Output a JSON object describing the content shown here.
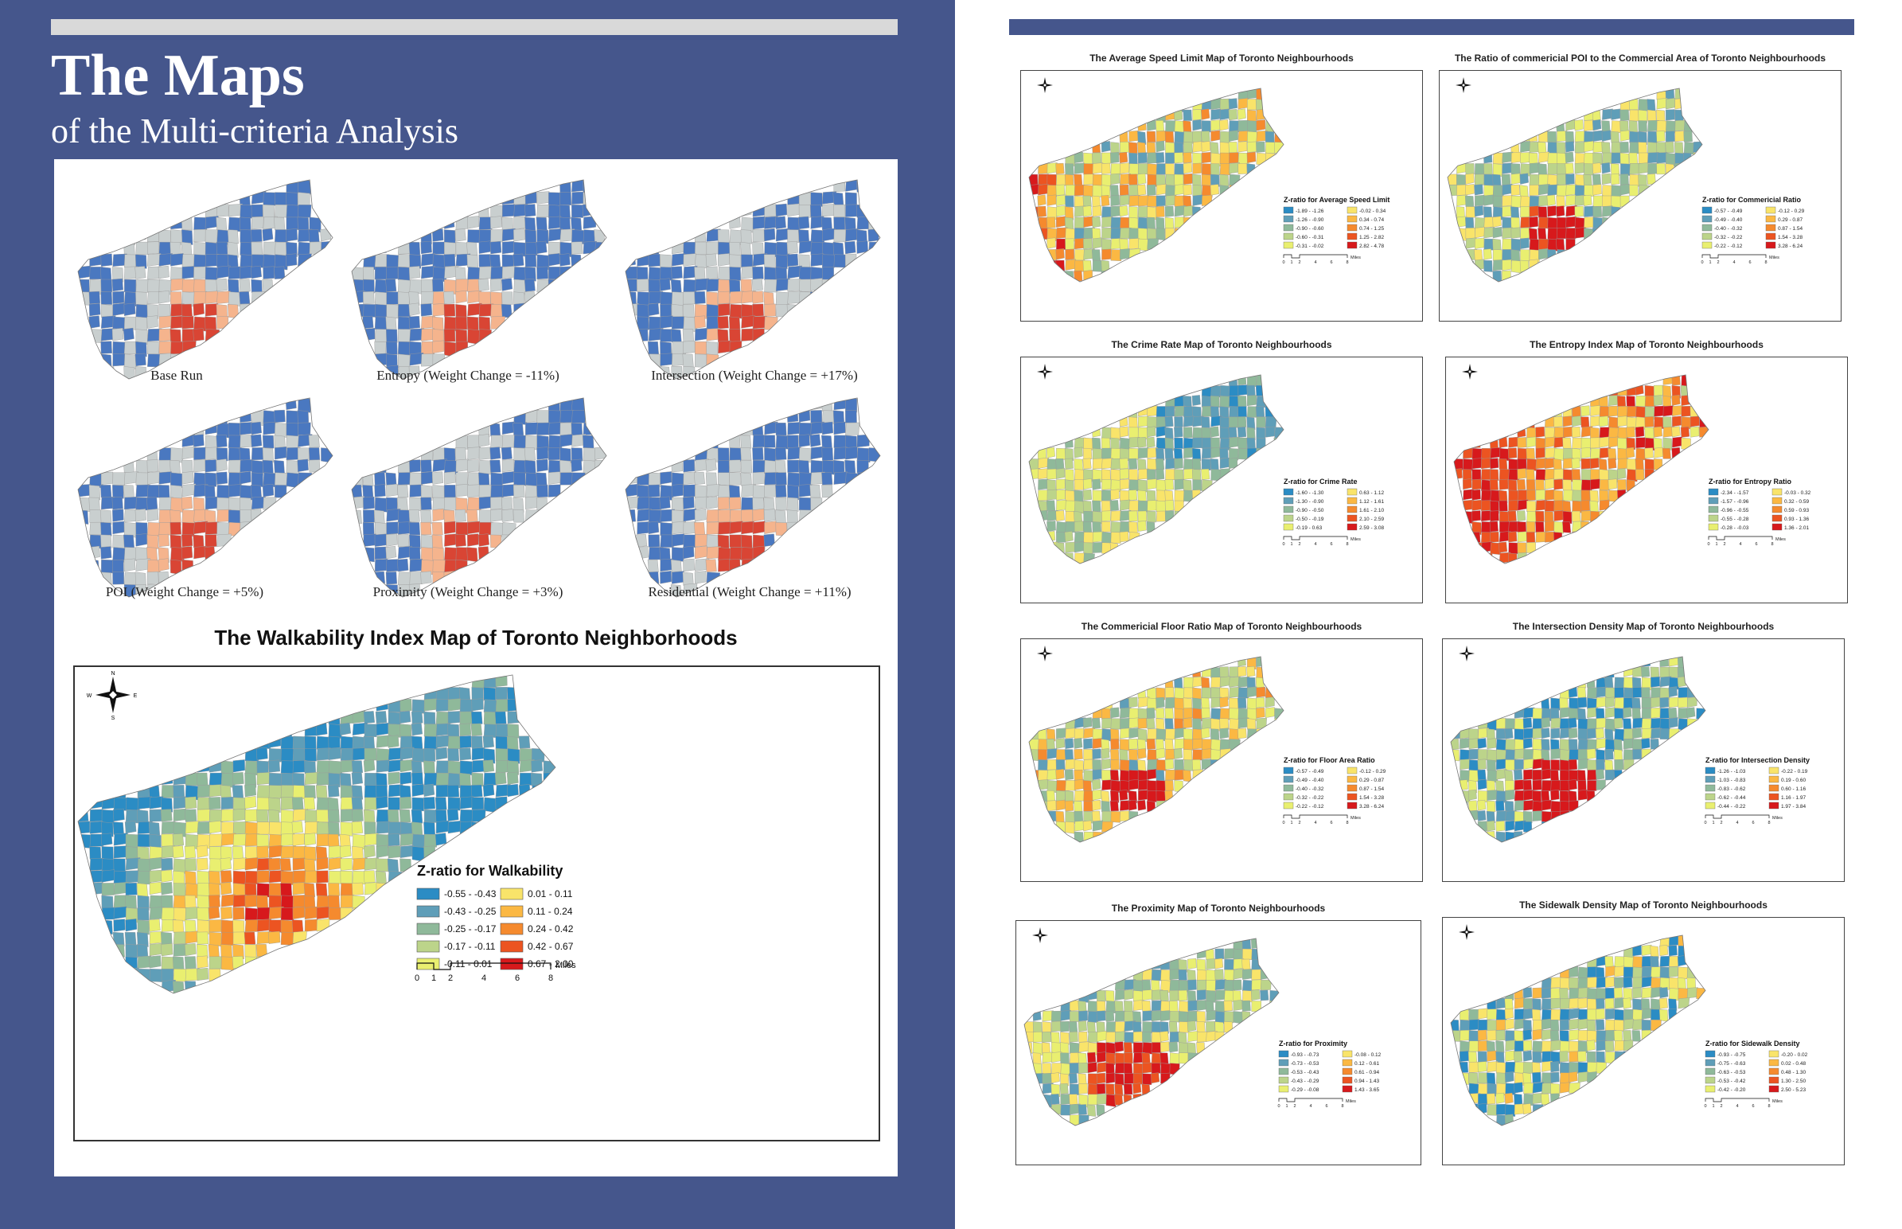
{
  "header": {
    "title": "The Maps",
    "subtitle": "of the Multi-criteria Analysis"
  },
  "sensitivity_maps": [
    {
      "caption": "Base Run"
    },
    {
      "caption": "Entropy (Weight Change = -11%)"
    },
    {
      "caption": "Intersection (Weight Change = +17%)"
    },
    {
      "caption": "POI (Weight Change = +5%)"
    },
    {
      "caption": "Proximity (Weight Change = +3%)"
    },
    {
      "caption": "Residential (Weight Change = +11%)"
    }
  ],
  "main_map": {
    "title": "The Walkability Index Map of Toronto Neighborhoods",
    "legend_title": "Z-ratio for Walkability",
    "legend": [
      {
        "label": "-0.55 - -0.43",
        "color": "#2b8cc4"
      },
      {
        "label": "-0.43 - -0.25",
        "color": "#5f9eb8"
      },
      {
        "label": "-0.25 - -0.17",
        "color": "#8fb99a"
      },
      {
        "label": "-0.17 - -0.11",
        "color": "#bcd48a"
      },
      {
        "label": "-0.11 - 0.01",
        "color": "#e9ef70"
      },
      {
        "label": "0.01 - 0.11",
        "color": "#f9e46a"
      },
      {
        "label": "0.11 - 0.24",
        "color": "#fbb843"
      },
      {
        "label": "0.24 - 0.42",
        "color": "#f58a2e"
      },
      {
        "label": "0.42 - 0.67",
        "color": "#ec5421"
      },
      {
        "label": "0.67 - 2.00",
        "color": "#d7191c"
      }
    ],
    "scale": {
      "ticks": [
        "0",
        "1",
        "2",
        "4",
        "6",
        "8"
      ],
      "unit": "Miles"
    },
    "compass": {
      "n": "N",
      "s": "S",
      "e": "E",
      "w": "W"
    }
  },
  "criteria_maps": [
    {
      "title": "The Average Speed Limit Map of Toronto Neighbourhoods",
      "legend_title": "Z-ratio for Average Speed Limit",
      "legend": [
        "-1.89 - -1.26",
        "-1.26 - -0.90",
        "-0.90 - -0.60",
        "-0.60 - -0.31",
        "-0.31 - -0.02",
        "-0.02 - 0.34",
        "0.34 - 0.74",
        "0.74 - 1.25",
        "1.25 - 2.82",
        "2.82 - 4.78"
      ]
    },
    {
      "title": "The Ratio of commericial POI to the Commercial Area of Toronto Neighbourhoods",
      "legend_title": "Z-ratio for Commericial Ratio",
      "legend": [
        "-0.57 - -0.49",
        "-0.49 - -0.40",
        "-0.40 - -0.32",
        "-0.32 - -0.22",
        "-0.22 - -0.12",
        "-0.12 - 0.29",
        "0.29 - 0.87",
        "0.87 - 1.54",
        "1.54 - 3.28",
        "3.28 - 6.24"
      ]
    },
    {
      "title": "The Crime Rate Map of Toronto Neighbourhoods",
      "legend_title": "Z-ratio for Crime Rate",
      "legend": [
        "-1.60 - -1.30",
        "-1.30 - -0.90",
        "-0.90 - -0.50",
        "-0.50 - -0.19",
        "-0.19 - 0.63",
        "0.63 - 1.12",
        "1.12 - 1.61",
        "1.61 - 2.10",
        "2.10 - 2.59",
        "2.59 - 3.08"
      ]
    },
    {
      "title": "The Entropy Index Map of Toronto Neighbourhoods",
      "legend_title": "Z-ratio for Entropy Ratio",
      "legend": [
        "-2.34 - -1.57",
        "-1.57 - -0.96",
        "-0.96 - -0.55",
        "-0.55 - -0.28",
        "-0.28 - -0.03",
        "-0.03 - 0.32",
        "0.32 - 0.59",
        "0.59 - 0.93",
        "0.93 - 1.36",
        "1.36 - 2.01"
      ]
    },
    {
      "title": "The Commericial Floor Ratio Map of Toronto Neighbourhoods",
      "legend_title": "Z-ratio for Floor Area Ratio",
      "legend": [
        "-0.57 - -0.49",
        "-0.49 - -0.40",
        "-0.40 - -0.32",
        "-0.32 - -0.22",
        "-0.22 - -0.12",
        "-0.12 - 0.29",
        "0.29 - 0.87",
        "0.87 - 1.54",
        "1.54 - 3.28",
        "3.28 - 6.24"
      ]
    },
    {
      "title": "The Intersection Density Map of Toronto Neighbourhoods",
      "legend_title": "Z-ratio for Intersection Density",
      "legend": [
        "-1.26 - -1.03",
        "-1.03 - -0.83",
        "-0.83 - -0.62",
        "-0.62 - -0.44",
        "-0.44 - -0.22",
        "-0.22 - 0.19",
        "0.19 - 0.60",
        "0.60 - 1.16",
        "1.16 - 1.97",
        "1.97 - 3.84"
      ]
    },
    {
      "title": "The Proximity Map of Toronto Neighbourhoods",
      "legend_title": "Z-ratio for Proximity",
      "legend": [
        "-0.93 - -0.73",
        "-0.73 - -0.53",
        "-0.53 - -0.43",
        "-0.43 - -0.29",
        "-0.29 - -0.08",
        "-0.08 - 0.12",
        "0.12 - 0.61",
        "0.61 - 0.94",
        "0.94 - 1.43",
        "1.43 - 3.65"
      ]
    },
    {
      "title": "The Sidewalk Density Map of Toronto Neighbourhoods",
      "legend_title": "Z-ratio for Sidewalk Density",
      "legend": [
        "-0.93 - -0.75",
        "-0.75 - -0.63",
        "-0.63 - -0.53",
        "-0.53 - -0.42",
        "-0.42 - -0.20",
        "-0.20 - 0.02",
        "0.02 - 0.48",
        "0.48 - 1.30",
        "1.30 - 2.50",
        "2.50 - 5.23"
      ]
    }
  ],
  "criteria_scale": {
    "ticks": [
      "0",
      "1",
      "2",
      "4",
      "6",
      "8"
    ],
    "unit": "Miles"
  },
  "palette": [
    "#2b8cc4",
    "#5f9eb8",
    "#8fb99a",
    "#bcd48a",
    "#e9ef70",
    "#f9e46a",
    "#fbb843",
    "#f58a2e",
    "#ec5421",
    "#d7191c"
  ],
  "sensitivity_palette": [
    "#4a78c0",
    "#c9cfcf",
    "#f5b48d",
    "#d94534"
  ]
}
